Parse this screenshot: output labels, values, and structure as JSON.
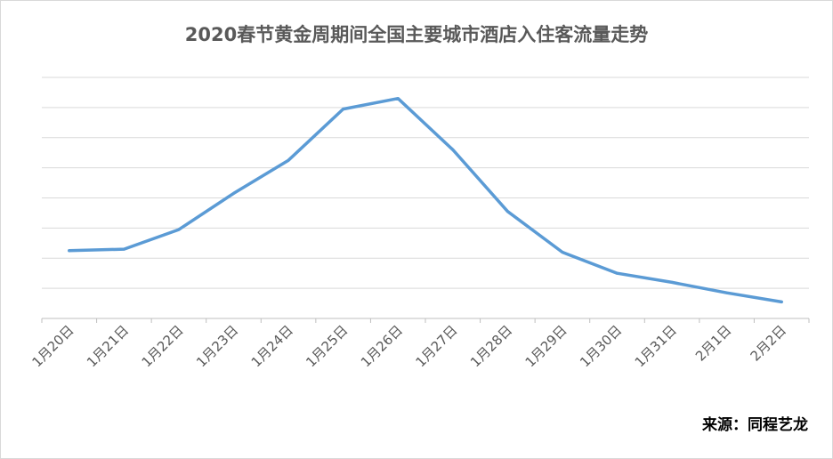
{
  "chart_data": {
    "type": "line",
    "title": "2020春节黄金周期间全国主要城市酒店入住客流量走势",
    "categories": [
      "1月20日",
      "1月21日",
      "1月22日",
      "1月23日",
      "1月24日",
      "1月25日",
      "1月26日",
      "1月27日",
      "1月28日",
      "1月29日",
      "1月30日",
      "1月31日",
      "2月1日",
      "2月2日"
    ],
    "series": [
      {
        "values": [
          2.25,
          2.3,
          2.95,
          4.15,
          5.25,
          6.95,
          7.3,
          5.6,
          3.55,
          2.2,
          1.5,
          1.2,
          0.85,
          0.55
        ],
        "color": "#5b9bd5"
      }
    ],
    "ylim": [
      0,
      8
    ],
    "y_gridlines": 8,
    "y_tick_labels_shown": false,
    "grid": true,
    "xlabel": "",
    "ylabel": ""
  },
  "source_text": "来源：同程艺龙",
  "colors": {
    "grid": "#d9d9d9",
    "axis": "#bfbfbf",
    "title": "#595959"
  }
}
